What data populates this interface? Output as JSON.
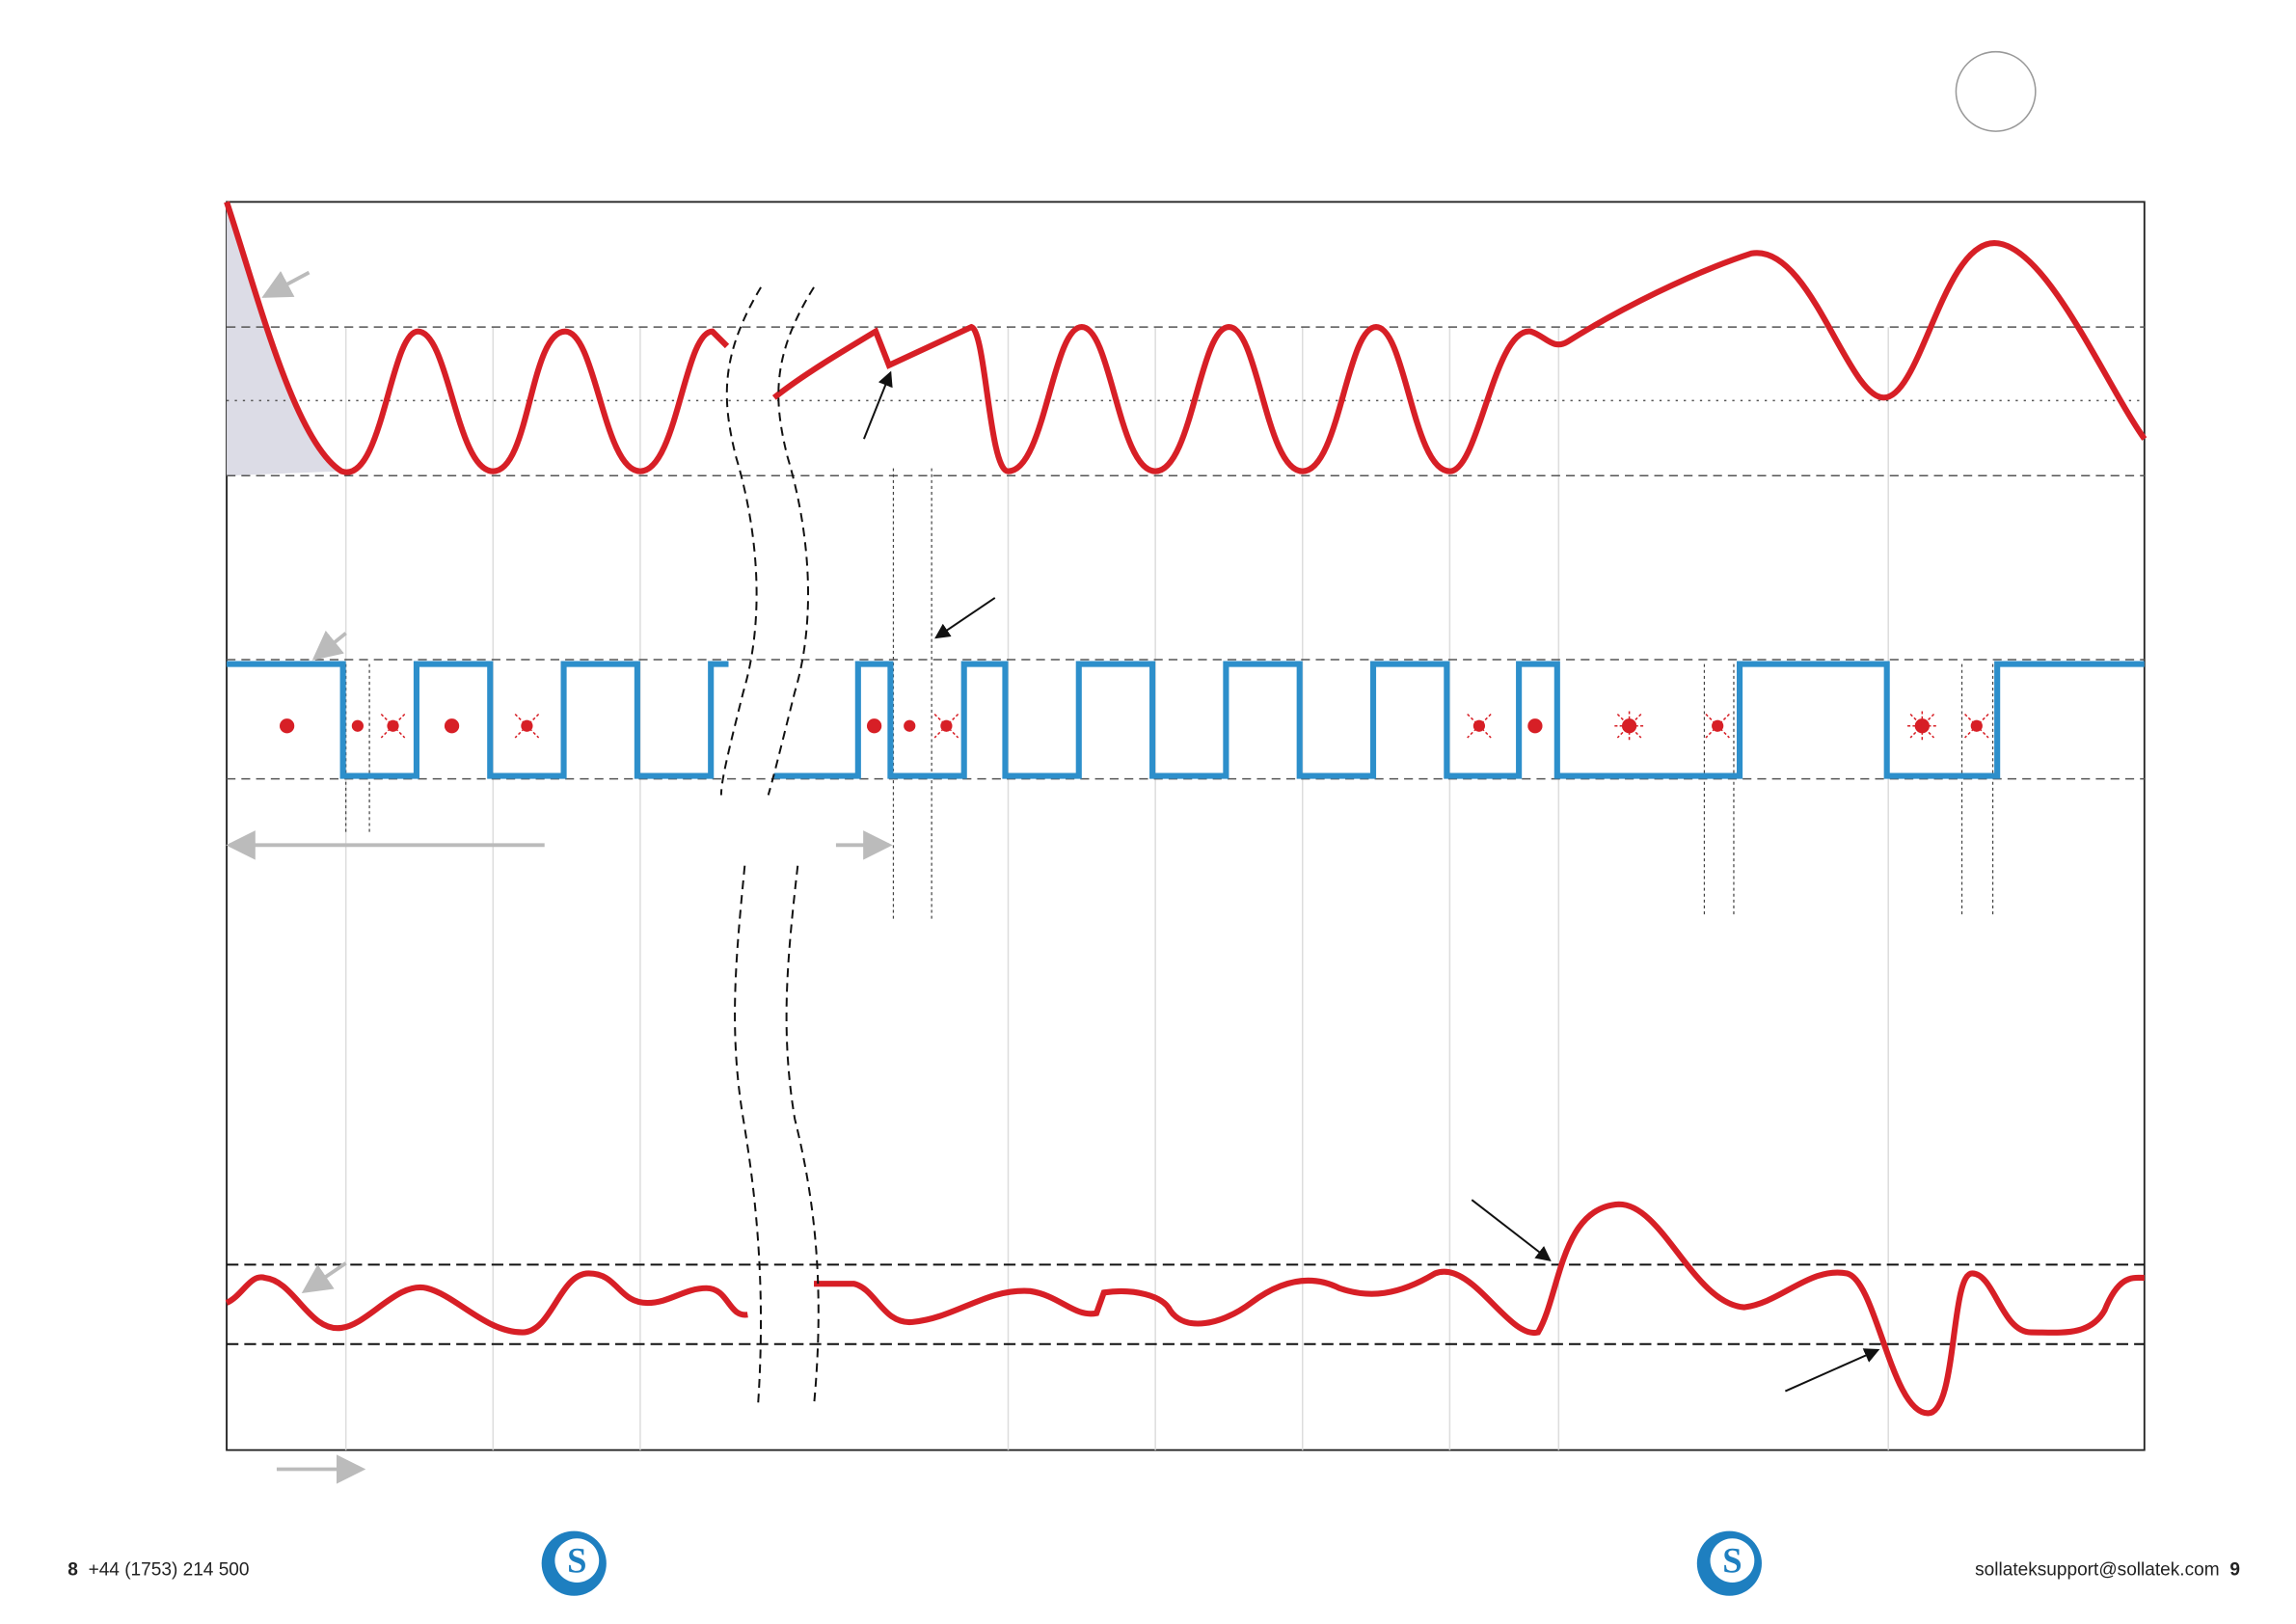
{
  "footer": {
    "left_page": "8",
    "phone": "+44 (1753) 214 500",
    "email": "sollateksupport@sollatek.com",
    "right_page": "9"
  }
}
